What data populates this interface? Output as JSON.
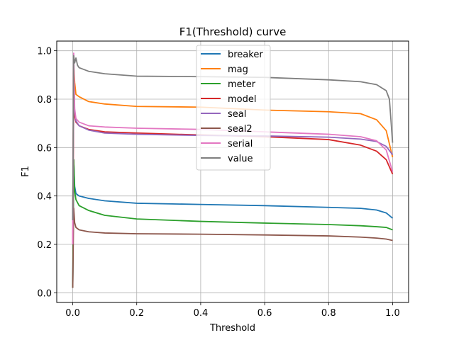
{
  "chart_data": {
    "type": "line",
    "title": "F1(Threshold) curve",
    "xlabel": "Threshold",
    "ylabel": "F1",
    "xlim": [
      -0.05,
      1.05
    ],
    "ylim": [
      -0.04,
      1.04
    ],
    "xticks": [
      0.0,
      0.2,
      0.4,
      0.6,
      0.8,
      1.0
    ],
    "yticks": [
      0.0,
      0.2,
      0.4,
      0.6,
      0.8,
      1.0
    ],
    "xtick_labels": [
      "0.0",
      "0.2",
      "0.4",
      "0.6",
      "0.8",
      "1.0"
    ],
    "ytick_labels": [
      "0.0",
      "0.2",
      "0.4",
      "0.6",
      "0.8",
      "1.0"
    ],
    "grid": true,
    "legend_position": "upper-center",
    "series": [
      {
        "name": "breaker",
        "color": "#1f77b4",
        "x": [
          0.0,
          0.003,
          0.006,
          0.01,
          0.02,
          0.05,
          0.1,
          0.2,
          0.4,
          0.6,
          0.8,
          0.9,
          0.95,
          0.98,
          1.0
        ],
        "y": [
          0.02,
          0.55,
          0.44,
          0.41,
          0.4,
          0.39,
          0.38,
          0.37,
          0.365,
          0.36,
          0.353,
          0.349,
          0.342,
          0.33,
          0.308
        ]
      },
      {
        "name": "mag",
        "color": "#ff7f0e",
        "x": [
          0.0,
          0.003,
          0.006,
          0.01,
          0.02,
          0.05,
          0.1,
          0.2,
          0.4,
          0.6,
          0.8,
          0.9,
          0.95,
          0.98,
          1.0
        ],
        "y": [
          0.3,
          0.94,
          0.87,
          0.82,
          0.81,
          0.79,
          0.78,
          0.77,
          0.767,
          0.755,
          0.748,
          0.74,
          0.715,
          0.67,
          0.56
        ]
      },
      {
        "name": "meter",
        "color": "#2ca02c",
        "x": [
          0.0,
          0.003,
          0.006,
          0.01,
          0.02,
          0.05,
          0.1,
          0.2,
          0.4,
          0.6,
          0.8,
          0.9,
          0.95,
          0.98,
          1.0
        ],
        "y": [
          0.02,
          0.55,
          0.42,
          0.385,
          0.36,
          0.34,
          0.32,
          0.305,
          0.295,
          0.288,
          0.282,
          0.277,
          0.273,
          0.27,
          0.26
        ]
      },
      {
        "name": "model",
        "color": "#d62728",
        "x": [
          0.0,
          0.003,
          0.006,
          0.01,
          0.02,
          0.05,
          0.1,
          0.2,
          0.4,
          0.6,
          0.8,
          0.9,
          0.95,
          0.98,
          1.0
        ],
        "y": [
          0.2,
          0.8,
          0.73,
          0.705,
          0.69,
          0.675,
          0.665,
          0.66,
          0.652,
          0.645,
          0.633,
          0.61,
          0.585,
          0.55,
          0.49
        ]
      },
      {
        "name": "seal",
        "color": "#9467bd",
        "x": [
          0.0,
          0.003,
          0.006,
          0.01,
          0.02,
          0.05,
          0.1,
          0.2,
          0.4,
          0.6,
          0.8,
          0.9,
          0.95,
          0.98,
          1.0
        ],
        "y": [
          0.3,
          0.92,
          0.75,
          0.71,
          0.69,
          0.672,
          0.66,
          0.655,
          0.65,
          0.648,
          0.643,
          0.635,
          0.625,
          0.605,
          0.57
        ]
      },
      {
        "name": "seal2",
        "color": "#8c564b",
        "x": [
          0.0,
          0.003,
          0.006,
          0.01,
          0.02,
          0.05,
          0.1,
          0.2,
          0.4,
          0.6,
          0.8,
          0.9,
          0.95,
          0.98,
          1.0
        ],
        "y": [
          0.02,
          0.35,
          0.29,
          0.27,
          0.26,
          0.252,
          0.247,
          0.244,
          0.242,
          0.239,
          0.235,
          0.23,
          0.226,
          0.222,
          0.216
        ]
      },
      {
        "name": "serial",
        "color": "#e377c2",
        "x": [
          0.0,
          0.003,
          0.006,
          0.01,
          0.02,
          0.05,
          0.1,
          0.2,
          0.4,
          0.6,
          0.8,
          0.9,
          0.95,
          0.98,
          1.0
        ],
        "y": [
          0.2,
          0.99,
          0.76,
          0.72,
          0.705,
          0.69,
          0.685,
          0.68,
          0.675,
          0.665,
          0.655,
          0.645,
          0.628,
          0.59,
          0.5
        ]
      },
      {
        "name": "value",
        "color": "#7f7f7f",
        "x": [
          0.0,
          0.003,
          0.006,
          0.01,
          0.015,
          0.02,
          0.05,
          0.1,
          0.2,
          0.4,
          0.6,
          0.8,
          0.9,
          0.95,
          0.98,
          0.99,
          1.0
        ],
        "y": [
          0.3,
          0.98,
          0.95,
          0.97,
          0.94,
          0.93,
          0.915,
          0.905,
          0.895,
          0.893,
          0.89,
          0.88,
          0.872,
          0.86,
          0.835,
          0.8,
          0.62
        ]
      }
    ]
  }
}
